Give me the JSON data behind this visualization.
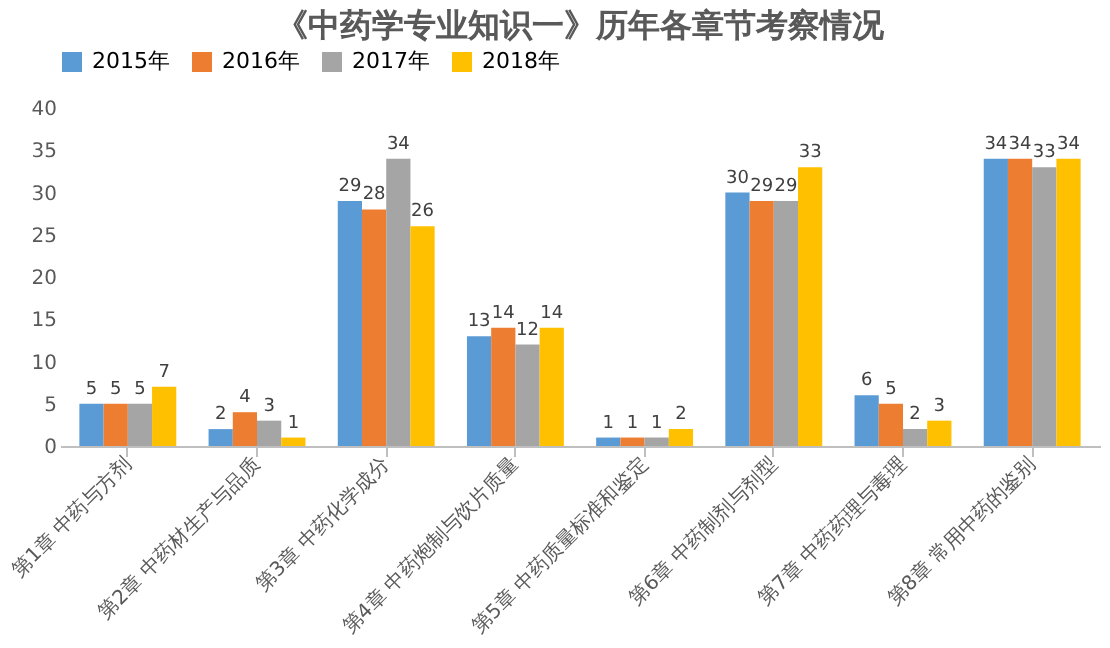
{
  "chart_data": {
    "type": "bar",
    "title": "《中药学专业知识一》历年各章节考察情况",
    "categories": [
      "第1章 中药与方剂",
      "第2章 中药材生产与品质",
      "第3章 中药化学成分",
      "第4章 中药炮制与饮片质量",
      "第5章 中药质量标准和鉴定",
      "第6章 中药制剂与剂型",
      "第7章 中药药理与毒理",
      "第8章 常用中药的鉴别"
    ],
    "series": [
      {
        "name": "2015年",
        "color": "#5b9bd5",
        "values": [
          5,
          2,
          29,
          13,
          1,
          30,
          6,
          34
        ]
      },
      {
        "name": "2016年",
        "color": "#ed7d31",
        "values": [
          5,
          4,
          28,
          14,
          1,
          29,
          5,
          34
        ]
      },
      {
        "name": "2017年",
        "color": "#a5a5a5",
        "values": [
          5,
          3,
          34,
          12,
          1,
          29,
          2,
          33
        ]
      },
      {
        "name": "2018年",
        "color": "#ffc000",
        "values": [
          7,
          1,
          26,
          14,
          2,
          33,
          3,
          34
        ]
      }
    ],
    "ylim": [
      0,
      40
    ],
    "yticks": [
      0,
      5,
      10,
      15,
      20,
      25,
      30,
      35,
      40
    ],
    "data_labels": true,
    "legend": "top",
    "grid": false
  }
}
